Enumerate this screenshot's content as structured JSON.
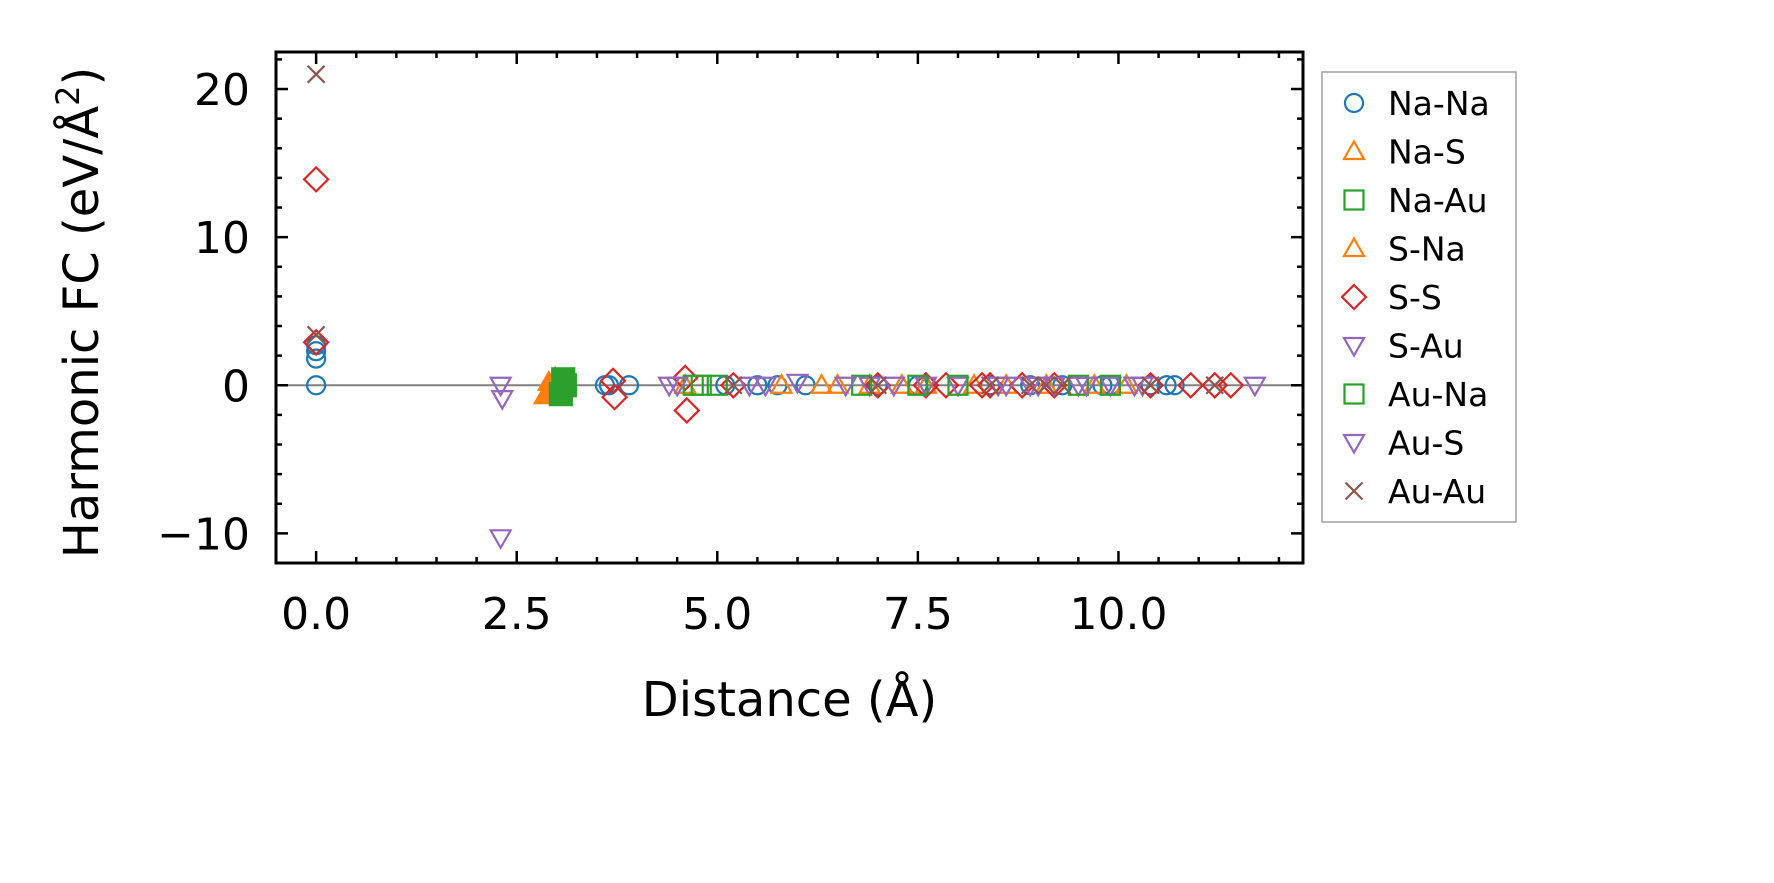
{
  "chart_data": {
    "type": "scatter",
    "title": "",
    "xlabel": "Distance (Å)",
    "ylabel_main": "Harmonic FC (eV/Å",
    "ylabel_sup": "2",
    "ylabel_close": ")",
    "xlim": [
      -0.5,
      12.3
    ],
    "ylim": [
      -12,
      22.5
    ],
    "xticks": [
      0,
      2.5,
      5,
      7.5,
      10
    ],
    "xtick_labels": [
      "0.0",
      "2.5",
      "5.0",
      "7.5",
      "10.0"
    ],
    "yticks": [
      -10,
      0,
      10,
      20
    ],
    "ytick_labels": [
      "−10",
      "0",
      "10",
      "20"
    ],
    "x_minor_step": 0.5,
    "y_minor_step": 2,
    "zero_line": true,
    "legend_position": "outside-right",
    "series": [
      {
        "name": "Na-Na",
        "marker": "circle",
        "filled": false,
        "color": "#1f77b4",
        "x": [
          0,
          0,
          0,
          0,
          3.6,
          3.65,
          3.9,
          5.1,
          5.5,
          5.75,
          6.1,
          7.0,
          7.5,
          8.4,
          8.9,
          9.3,
          9.8,
          9.9,
          10.4,
          10.6,
          10.7
        ],
        "y": [
          0,
          1.8,
          2.3,
          2.7,
          0,
          0,
          0,
          0,
          0,
          0,
          0,
          0,
          0,
          0,
          0,
          0,
          0,
          0,
          0,
          0,
          0
        ]
      },
      {
        "name": "Na-S",
        "marker": "triangle-up",
        "filled": true,
        "color": "#ff7f0e",
        "x": [
          2.85,
          2.9,
          2.95,
          2.98,
          3.0
        ],
        "y": [
          -0.7,
          0.2,
          -0.4,
          0.5,
          -0.2
        ]
      },
      {
        "name": "Na-Au",
        "marker": "square",
        "filled": true,
        "color": "#2ca02c",
        "x": [
          3.05,
          3.08,
          3.1
        ],
        "y": [
          -0.6,
          0.4,
          0
        ]
      },
      {
        "name": "S-Na",
        "marker": "triangle-up",
        "filled": false,
        "color": "#ff7f0e",
        "x": [
          4.6,
          5.8,
          6.3,
          6.5,
          6.9,
          7.3,
          7.6,
          8.2,
          8.6,
          9.1,
          9.7,
          10.1
        ],
        "y": [
          0,
          0,
          0,
          0,
          0,
          0,
          0,
          0,
          0,
          0,
          0,
          0
        ]
      },
      {
        "name": "S-S",
        "marker": "diamond",
        "filled": false,
        "color": "#d62728",
        "x": [
          0,
          0,
          3.7,
          3.72,
          4.6,
          4.62,
          5.2,
          7.0,
          7.6,
          7.85,
          8.3,
          8.4,
          8.8,
          9.2,
          10.4,
          10.9,
          11.2,
          11.4
        ],
        "y": [
          13.9,
          2.9,
          0.3,
          -0.8,
          0.5,
          -1.7,
          0,
          0,
          0,
          0,
          0,
          0,
          0,
          0,
          0,
          0,
          0,
          0
        ]
      },
      {
        "name": "S-Au",
        "marker": "triangle-down",
        "filled": false,
        "color": "#9467bd",
        "x": [
          2.3,
          2.32,
          2.3,
          4.4,
          5.4,
          6.0,
          6.9,
          7.6,
          8.0,
          8.6,
          9.0,
          9.5,
          9.9,
          10.3,
          11.7
        ],
        "y": [
          0,
          -0.9,
          -10.3,
          0,
          0,
          0.2,
          0,
          0,
          0,
          0,
          0,
          0,
          0,
          0,
          0
        ]
      },
      {
        "name": "Au-Na",
        "marker": "square",
        "filled": false,
        "color": "#2ca02c",
        "x": [
          4.7,
          4.8,
          5.0,
          6.8,
          7.5,
          8.0,
          9.5,
          9.9
        ],
        "y": [
          0,
          0,
          0,
          0,
          0,
          0,
          0,
          0
        ]
      },
      {
        "name": "Au-S",
        "marker": "triangle-down",
        "filled": false,
        "color": "#9467bd",
        "x": [
          4.5,
          5.6,
          6.6,
          7.2,
          8.5,
          8.9,
          9.2,
          9.6,
          10.2
        ],
        "y": [
          0,
          0,
          0,
          0,
          0,
          0,
          0,
          0,
          0
        ]
      },
      {
        "name": "Au-Au",
        "marker": "x",
        "filled": false,
        "color": "#8c564b",
        "x": [
          0,
          0,
          5.2,
          7.0,
          8.4,
          8.9,
          9.1,
          9.3,
          10.4,
          11.2
        ],
        "y": [
          21,
          3.4,
          0,
          0,
          0,
          0,
          0,
          0,
          0,
          0
        ]
      }
    ]
  }
}
